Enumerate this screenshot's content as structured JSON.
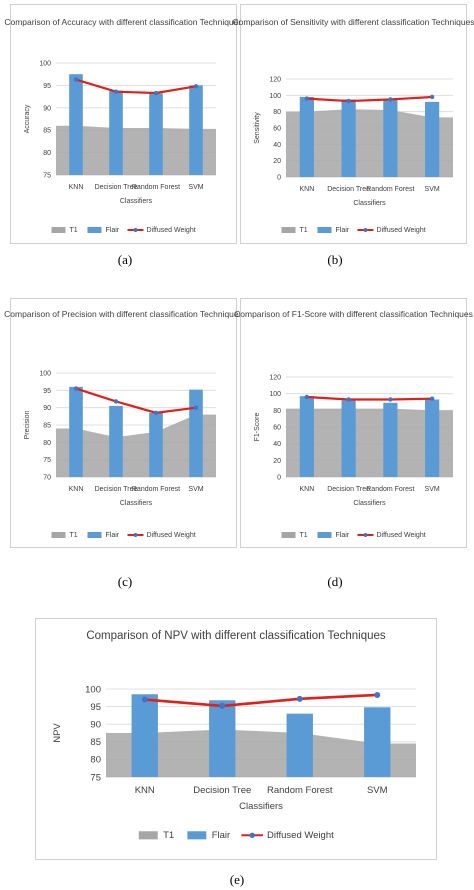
{
  "colors": {
    "t1": "#a6a6a6",
    "flair": "#5b9bd5",
    "diffused_line": "#e0201b",
    "diffused_marker": "#4472c4",
    "text": "#404040",
    "grid": "#d9d9d9",
    "axis": "#bfbfbf"
  },
  "captions": {
    "a": "(a)",
    "b": "(b)",
    "c": "(c)",
    "d": "(d)",
    "e": "(e)"
  },
  "chart_data": [
    {
      "id": "a",
      "type": "bar",
      "title": "Comparison of Accuracy with different classification Techniques",
      "xlabel": "Classifiers",
      "ylabel": "Accuracy",
      "categories": [
        "KNN",
        "Decision Tree",
        "Random Forest",
        "SVM"
      ],
      "ylim": [
        75,
        100
      ],
      "yticks": [
        "75",
        "80",
        "85",
        "90",
        "95",
        "100"
      ],
      "series": [
        {
          "name": "T1",
          "kind": "area",
          "values": [
            86,
            85.5,
            85.5,
            85.3
          ]
        },
        {
          "name": "Flair",
          "kind": "bar",
          "values": [
            97.5,
            93.8,
            93.2,
            95
          ]
        },
        {
          "name": "Diffused Weight",
          "kind": "line",
          "values": [
            96.3,
            93.6,
            93.3,
            94.8
          ]
        }
      ],
      "legend_position": "bottom"
    },
    {
      "id": "b",
      "type": "bar",
      "title": "Comparison of Sensitivity with different classification Techniques",
      "xlabel": "Classifiers",
      "ylabel": "Sensitivity",
      "categories": [
        "KNN",
        "Decision Tree",
        "Random Forest",
        "SVM"
      ],
      "ylim": [
        0,
        120
      ],
      "yticks": [
        "0",
        "20",
        "40",
        "60",
        "80",
        "100",
        "120"
      ],
      "series": [
        {
          "name": "T1",
          "kind": "area",
          "values": [
            80,
            83,
            82,
            73
          ]
        },
        {
          "name": "Flair",
          "kind": "bar",
          "values": [
            98,
            95,
            96,
            92
          ]
        },
        {
          "name": "Diffused Weight",
          "kind": "line",
          "values": [
            96,
            93,
            95,
            98
          ]
        }
      ],
      "legend_position": "bottom"
    },
    {
      "id": "c",
      "type": "bar",
      "title": "Comparison of Precision with different classification Techniques",
      "xlabel": "Classifiers",
      "ylabel": "Precision",
      "categories": [
        "KNN",
        "Decision Tree",
        "Random Forest",
        "SVM"
      ],
      "ylim": [
        70,
        100
      ],
      "yticks": [
        "70",
        "75",
        "80",
        "85",
        "90",
        "95",
        "100"
      ],
      "series": [
        {
          "name": "T1",
          "kind": "area",
          "values": [
            84,
            81.5,
            83,
            88
          ]
        },
        {
          "name": "Flair",
          "kind": "bar",
          "values": [
            96,
            90.5,
            88.5,
            95.2
          ]
        },
        {
          "name": "Diffused Weight",
          "kind": "line",
          "values": [
            95.5,
            91.8,
            88.5,
            90
          ]
        }
      ],
      "legend_position": "bottom"
    },
    {
      "id": "d",
      "type": "bar",
      "title": "Comparison of F1-Score with different classification Techniques",
      "xlabel": "Classifiers",
      "ylabel": "F1-Score",
      "categories": [
        "KNN",
        "Decision Tree",
        "Random Forest",
        "SVM"
      ],
      "ylim": [
        0,
        120
      ],
      "yticks": [
        "0",
        "20",
        "40",
        "60",
        "80",
        "100",
        "120"
      ],
      "series": [
        {
          "name": "T1",
          "kind": "area",
          "values": [
            82,
            82,
            82,
            80
          ]
        },
        {
          "name": "Flair",
          "kind": "bar",
          "values": [
            97,
            92,
            89,
            93
          ]
        },
        {
          "name": "Diffused Weight",
          "kind": "line",
          "values": [
            96,
            93,
            93,
            94
          ]
        }
      ],
      "legend_position": "bottom"
    },
    {
      "id": "e",
      "type": "bar",
      "title": "Comparison of NPV with different classification Techniques",
      "xlabel": "Classifiers",
      "ylabel": "NPV",
      "categories": [
        "KNN",
        "Decision Tree",
        "Random Forest",
        "SVM"
      ],
      "ylim": [
        75,
        100
      ],
      "yticks": [
        "75",
        "80",
        "85",
        "90",
        "95",
        "100"
      ],
      "series": [
        {
          "name": "T1",
          "kind": "area",
          "values": [
            87.5,
            88.5,
            87.5,
            84.5
          ]
        },
        {
          "name": "Flair",
          "kind": "bar",
          "values": [
            98.5,
            96.8,
            93,
            94.8
          ]
        },
        {
          "name": "Diffused Weight",
          "kind": "line",
          "values": [
            97,
            95.2,
            97.2,
            98.3
          ]
        }
      ],
      "legend_position": "bottom"
    }
  ]
}
